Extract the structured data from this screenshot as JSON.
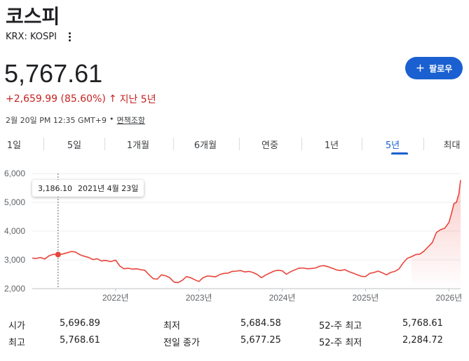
{
  "header": {
    "title": "코스피",
    "exchange": "KRX: KOSPI",
    "price": "5,767.61",
    "change": "+2,659.99 (85.60%)",
    "change_arrow": "↑",
    "change_period": "지난 5년",
    "timestamp": "2월 20일 PM 12:35 GMT+9",
    "separator": "•",
    "disclaimer_link": "면책조항",
    "follow_label": "팔로우",
    "follow_icon": "+"
  },
  "colors": {
    "accent": "#1a60d0",
    "negative_line": "#e8453c",
    "change_text": "#c5221f"
  },
  "tabs": [
    {
      "label": "1일"
    },
    {
      "label": "5일"
    },
    {
      "label": "1개월"
    },
    {
      "label": "6개월"
    },
    {
      "label": "연중"
    },
    {
      "label": "1년"
    },
    {
      "label": "5년",
      "active": true
    },
    {
      "label": "최대"
    }
  ],
  "tooltip": {
    "value": "3,186.10",
    "date": "2021년 4월 23일"
  },
  "chart_data": {
    "type": "area",
    "ylim": [
      2000,
      6000
    ],
    "yticks": [
      "2,000",
      "3,000",
      "4,000",
      "5,000",
      "6,000"
    ],
    "ytick_values": [
      2000,
      3000,
      4000,
      5000,
      6000
    ],
    "xticks": [
      "2022년",
      "2023년",
      "2024년",
      "2025년",
      "2026년"
    ],
    "xtick_values": [
      2022.0,
      2023.0,
      2024.0,
      2025.0,
      2026.0
    ],
    "xlim": [
      2021.0,
      2026.14
    ],
    "highlight": {
      "x": 2021.31,
      "y": 3186.1
    },
    "series": [
      {
        "x": [
          2021.0,
          2021.05,
          2021.1,
          2021.15,
          2021.2,
          2021.25,
          2021.31,
          2021.36,
          2021.42,
          2021.47,
          2021.52,
          2021.57,
          2021.62,
          2021.68,
          2021.73,
          2021.78,
          2021.83,
          2021.88,
          2021.94,
          2022.0,
          2022.05,
          2022.1,
          2022.15,
          2022.2,
          2022.25,
          2022.3,
          2022.35,
          2022.4,
          2022.45,
          2022.5,
          2022.55,
          2022.6,
          2022.65,
          2022.7,
          2022.75,
          2022.8,
          2022.85,
          2022.9,
          2022.95,
          2023.0,
          2023.05,
          2023.1,
          2023.15,
          2023.2,
          2023.25,
          2023.3,
          2023.35,
          2023.4,
          2023.45,
          2023.5,
          2023.55,
          2023.6,
          2023.65,
          2023.7,
          2023.75,
          2023.8,
          2023.85,
          2023.9,
          2023.95,
          2024.0,
          2024.05,
          2024.1,
          2024.15,
          2024.2,
          2024.25,
          2024.3,
          2024.35,
          2024.4,
          2024.45,
          2024.5,
          2024.55,
          2024.6,
          2024.65,
          2024.7,
          2024.75,
          2024.8,
          2024.85,
          2024.9,
          2024.95,
          2025.0,
          2025.05,
          2025.1,
          2025.15,
          2025.2,
          2025.25,
          2025.3,
          2025.35,
          2025.4,
          2025.45,
          2025.5,
          2025.55,
          2025.6,
          2025.65,
          2025.7,
          2025.75,
          2025.8,
          2025.85,
          2025.9,
          2025.95,
          2026.0,
          2026.03,
          2026.06,
          2026.09,
          2026.12,
          2026.14
        ],
        "values": [
          3060,
          3050,
          3080,
          3030,
          3140,
          3190,
          3186,
          3200,
          3250,
          3290,
          3270,
          3180,
          3130,
          3080,
          3010,
          3040,
          2960,
          2980,
          2940,
          2990,
          2790,
          2690,
          2710,
          2680,
          2690,
          2660,
          2640,
          2490,
          2350,
          2330,
          2480,
          2450,
          2380,
          2230,
          2210,
          2290,
          2420,
          2380,
          2310,
          2250,
          2380,
          2440,
          2430,
          2410,
          2490,
          2530,
          2540,
          2600,
          2610,
          2630,
          2580,
          2600,
          2560,
          2490,
          2380,
          2470,
          2540,
          2610,
          2640,
          2620,
          2500,
          2590,
          2650,
          2710,
          2720,
          2690,
          2700,
          2720,
          2780,
          2800,
          2760,
          2710,
          2650,
          2630,
          2660,
          2590,
          2540,
          2480,
          2430,
          2420,
          2530,
          2560,
          2610,
          2550,
          2480,
          2560,
          2600,
          2680,
          2890,
          3050,
          3110,
          3180,
          3200,
          3300,
          3450,
          3600,
          3950,
          4050,
          4100,
          4300,
          4600,
          4950,
          5000,
          5300,
          5768
        ]
      }
    ]
  },
  "stats": {
    "rows": [
      [
        {
          "label": "시가",
          "value": "5,696.89"
        },
        {
          "label": "최저",
          "value": "5,684.58"
        },
        {
          "label": "52-주 최고",
          "value": "5,768.61"
        }
      ],
      [
        {
          "label": "최고",
          "value": "5,768.61"
        },
        {
          "label": "전일 종가",
          "value": "5,677.25"
        },
        {
          "label": "52-주 최저",
          "value": "2,284.72"
        }
      ]
    ]
  }
}
